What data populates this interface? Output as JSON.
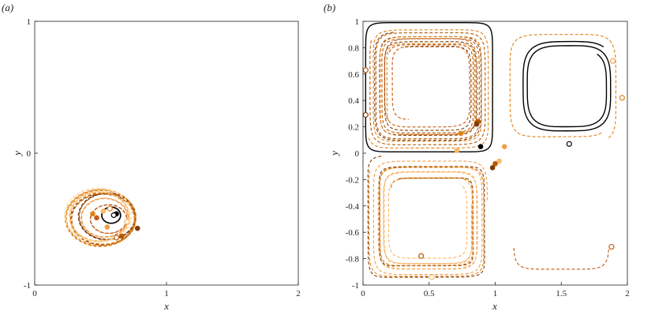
{
  "chart_data": [
    {
      "type": "line",
      "panel_label": "(a)",
      "xlabel": "x",
      "ylabel": "y",
      "xlim": [
        0,
        2
      ],
      "ylim": [
        -1,
        1
      ],
      "xticks": [
        0,
        1,
        2
      ],
      "xtick_labels": [
        "0",
        "1",
        "2"
      ],
      "yticks": [
        -1,
        0,
        1
      ],
      "ytick_labels": [
        "-1",
        "0",
        "1"
      ],
      "grid": false,
      "box": true,
      "trajectory_style": "dashed colored trajectories with one solid black reference trajectory; filled dot = final position, open circle = initial position",
      "trajectory_colors": [
        "#000000",
        "#7f3b08",
        "#b35806",
        "#e08214",
        "#fdb863",
        "#fee0b6",
        "#c65a12",
        "#f29e4c"
      ],
      "trajectories": [
        {
          "kind": "reference",
          "color": "#000000",
          "center": [
            0.58,
            -0.47
          ],
          "radii": [
            0.07,
            0.06
          ],
          "turns": 3,
          "radius_growth": 0.012
        },
        {
          "kind": "ensemble",
          "color": "#7f3b08",
          "center": [
            0.55,
            -0.48
          ],
          "radii": [
            0.22,
            0.18
          ],
          "turns": 3,
          "radius_growth": -0.015
        },
        {
          "kind": "ensemble",
          "color": "#b35806",
          "center": [
            0.52,
            -0.5
          ],
          "radii": [
            0.25,
            0.2
          ],
          "turns": 3,
          "radius_growth": -0.02
        },
        {
          "kind": "ensemble",
          "color": "#e08214",
          "center": [
            0.5,
            -0.49
          ],
          "radii": [
            0.27,
            0.22
          ],
          "turns": 3,
          "radius_growth": -0.02
        },
        {
          "kind": "ensemble",
          "color": "#fdb863",
          "center": [
            0.49,
            -0.48
          ],
          "radii": [
            0.23,
            0.19
          ],
          "turns": 3,
          "radius_growth": -0.015
        },
        {
          "kind": "ensemble",
          "color": "#fee0b6",
          "center": [
            0.48,
            -0.47
          ],
          "radii": [
            0.26,
            0.21
          ],
          "turns": 2,
          "radius_growth": -0.02
        },
        {
          "kind": "ensemble",
          "color": "#c65a12",
          "center": [
            0.56,
            -0.5
          ],
          "radii": [
            0.14,
            0.11
          ],
          "turns": 3,
          "radius_growth": -0.01
        },
        {
          "kind": "ensemble",
          "color": "#f29e4c",
          "center": [
            0.53,
            -0.49
          ],
          "radii": [
            0.18,
            0.15
          ],
          "turns": 3,
          "radius_growth": -0.015
        }
      ],
      "markers": [
        {
          "x": 0.62,
          "y": -0.46,
          "type": "filled",
          "color": "#000000"
        },
        {
          "x": 0.6,
          "y": -0.47,
          "type": "open",
          "color": "#000000"
        },
        {
          "x": 0.78,
          "y": -0.57,
          "type": "filled",
          "color": "#7f3b08"
        },
        {
          "x": 0.66,
          "y": -0.63,
          "type": "filled",
          "color": "#b35806"
        },
        {
          "x": 0.62,
          "y": -0.64,
          "type": "open",
          "color": "#b35806"
        },
        {
          "x": 0.57,
          "y": -0.42,
          "type": "open",
          "color": "#e08214"
        },
        {
          "x": 0.52,
          "y": -0.44,
          "type": "filled",
          "color": "#fdb863"
        },
        {
          "x": 0.47,
          "y": -0.49,
          "type": "filled",
          "color": "#c65a12"
        },
        {
          "x": 0.55,
          "y": -0.56,
          "type": "filled",
          "color": "#f29e4c"
        },
        {
          "x": 0.7,
          "y": -0.52,
          "type": "open",
          "color": "#fdb863"
        },
        {
          "x": 0.44,
          "y": -0.46,
          "type": "filled",
          "color": "#e08214"
        }
      ]
    },
    {
      "type": "line",
      "panel_label": "(b)",
      "xlabel": "x",
      "ylabel": "y",
      "xlim": [
        0,
        2
      ],
      "ylim": [
        -1,
        1
      ],
      "xticks": [
        0,
        0.5,
        1,
        1.5,
        2
      ],
      "xtick_labels": [
        "0",
        "0.5",
        "1",
        "1.5",
        "2"
      ],
      "yticks": [
        -1,
        -0.8,
        -0.6,
        -0.4,
        -0.2,
        0,
        0.2,
        0.4,
        0.6,
        0.8,
        1
      ],
      "ytick_labels": [
        "-1",
        "-0.8",
        "-0.6",
        "-0.4",
        "-0.2",
        "0",
        "0.2",
        "0.4",
        "0.6",
        "0.8",
        "1"
      ],
      "grid": false,
      "box": true,
      "trajectory_style": "dashed colored trajectories with solid black reference trajectories; filled dot = final position, open circle = initial position",
      "trajectories": [
        {
          "kind": "reference",
          "color": "#000000",
          "center": [
            0.5,
            0.5
          ],
          "radii": [
            0.48,
            0.49
          ],
          "power": 0.18,
          "turns": 1,
          "radius_growth": 0
        },
        {
          "kind": "reference",
          "color": "#000000",
          "center": [
            1.55,
            0.5
          ],
          "radii": [
            0.35,
            0.35
          ],
          "power": 0.55,
          "turns": 2,
          "radius_growth": -0.06
        },
        {
          "kind": "ensemble",
          "color": "#7f3b08",
          "center": [
            0.5,
            0.5
          ],
          "radii": [
            0.42,
            0.42
          ],
          "power": 0.3,
          "turns": 3,
          "radius_growth": -0.09
        },
        {
          "kind": "ensemble",
          "color": "#b35806",
          "center": [
            0.5,
            0.5
          ],
          "radii": [
            0.45,
            0.45
          ],
          "power": 0.28,
          "turns": 3,
          "radius_growth": -0.1
        },
        {
          "kind": "ensemble",
          "color": "#e08214",
          "center": [
            0.5,
            0.5
          ],
          "radii": [
            0.47,
            0.47
          ],
          "power": 0.25,
          "turns": 3,
          "radius_growth": -0.11
        },
        {
          "kind": "ensemble",
          "color": "#c65a12",
          "center": [
            0.5,
            0.52
          ],
          "radii": [
            0.38,
            0.38
          ],
          "power": 0.35,
          "turns": 2,
          "radius_growth": -0.1
        },
        {
          "kind": "ensemble",
          "color": "#e08214",
          "center": [
            1.5,
            0.5
          ],
          "radii": [
            0.42,
            0.42
          ],
          "power": 0.35,
          "turns": 1,
          "radius_growth": -0.04
        },
        {
          "kind": "ensemble",
          "color": "#f29e4c",
          "center": [
            0.5,
            -0.5
          ],
          "radii": [
            0.44,
            0.45
          ],
          "power": 0.28,
          "turns": 3,
          "radius_growth": -0.09
        },
        {
          "kind": "ensemble",
          "color": "#fdb863",
          "center": [
            0.5,
            -0.5
          ],
          "radii": [
            0.4,
            0.4
          ],
          "power": 0.32,
          "turns": 3,
          "radius_growth": -0.1
        },
        {
          "kind": "ensemble",
          "color": "#7f3b08",
          "center": [
            0.5,
            -0.5
          ],
          "radii": [
            0.48,
            0.48
          ],
          "power": 0.2,
          "turns": 2,
          "radius_growth": -0.12
        },
        {
          "kind": "ensemble",
          "color": "#e08214",
          "center": [
            0.5,
            -0.5
          ],
          "radii": [
            0.46,
            0.46
          ],
          "power": 0.25,
          "turns": 2,
          "radius_growth": -0.12
        },
        {
          "kind": "ensemble",
          "color": "#c65a12",
          "center": [
            1.5,
            -0.5
          ],
          "radii": [
            0.36,
            0.38
          ],
          "power": 0.3,
          "turns": 0.45,
          "radius_growth": 0,
          "start_angle": 3.3
        }
      ],
      "markers": [
        {
          "x": 0.89,
          "y": 0.05,
          "type": "filled",
          "color": "#000000"
        },
        {
          "x": 1.56,
          "y": 0.07,
          "type": "open",
          "color": "#000000"
        },
        {
          "x": 0.02,
          "y": 0.29,
          "type": "open",
          "color": "#7f3b08"
        },
        {
          "x": 0.02,
          "y": 0.63,
          "type": "open",
          "color": "#b35806"
        },
        {
          "x": 0.87,
          "y": 0.24,
          "type": "filled",
          "color": "#b35806"
        },
        {
          "x": 0.86,
          "y": 0.22,
          "type": "filled",
          "color": "#7f3b08"
        },
        {
          "x": 0.74,
          "y": 0.15,
          "type": "filled",
          "color": "#e08214"
        },
        {
          "x": 0.71,
          "y": 0.02,
          "type": "filled",
          "color": "#fdb863"
        },
        {
          "x": 1.07,
          "y": 0.05,
          "type": "filled",
          "color": "#f29e4c"
        },
        {
          "x": 1.03,
          "y": -0.06,
          "type": "filled",
          "color": "#fdb863"
        },
        {
          "x": 1.0,
          "y": -0.08,
          "type": "filled",
          "color": "#b35806"
        },
        {
          "x": 0.98,
          "y": -0.11,
          "type": "filled",
          "color": "#7f3b08"
        },
        {
          "x": 1.89,
          "y": 0.7,
          "type": "open",
          "color": "#f29e4c"
        },
        {
          "x": 1.96,
          "y": 0.42,
          "type": "open",
          "color": "#e08214"
        },
        {
          "x": 0.44,
          "y": -0.78,
          "type": "open",
          "color": "#b35806"
        },
        {
          "x": 0.52,
          "y": -0.94,
          "type": "open",
          "color": "#fdb863"
        },
        {
          "x": 1.88,
          "y": -0.71,
          "type": "open",
          "color": "#c65a12"
        }
      ]
    }
  ]
}
